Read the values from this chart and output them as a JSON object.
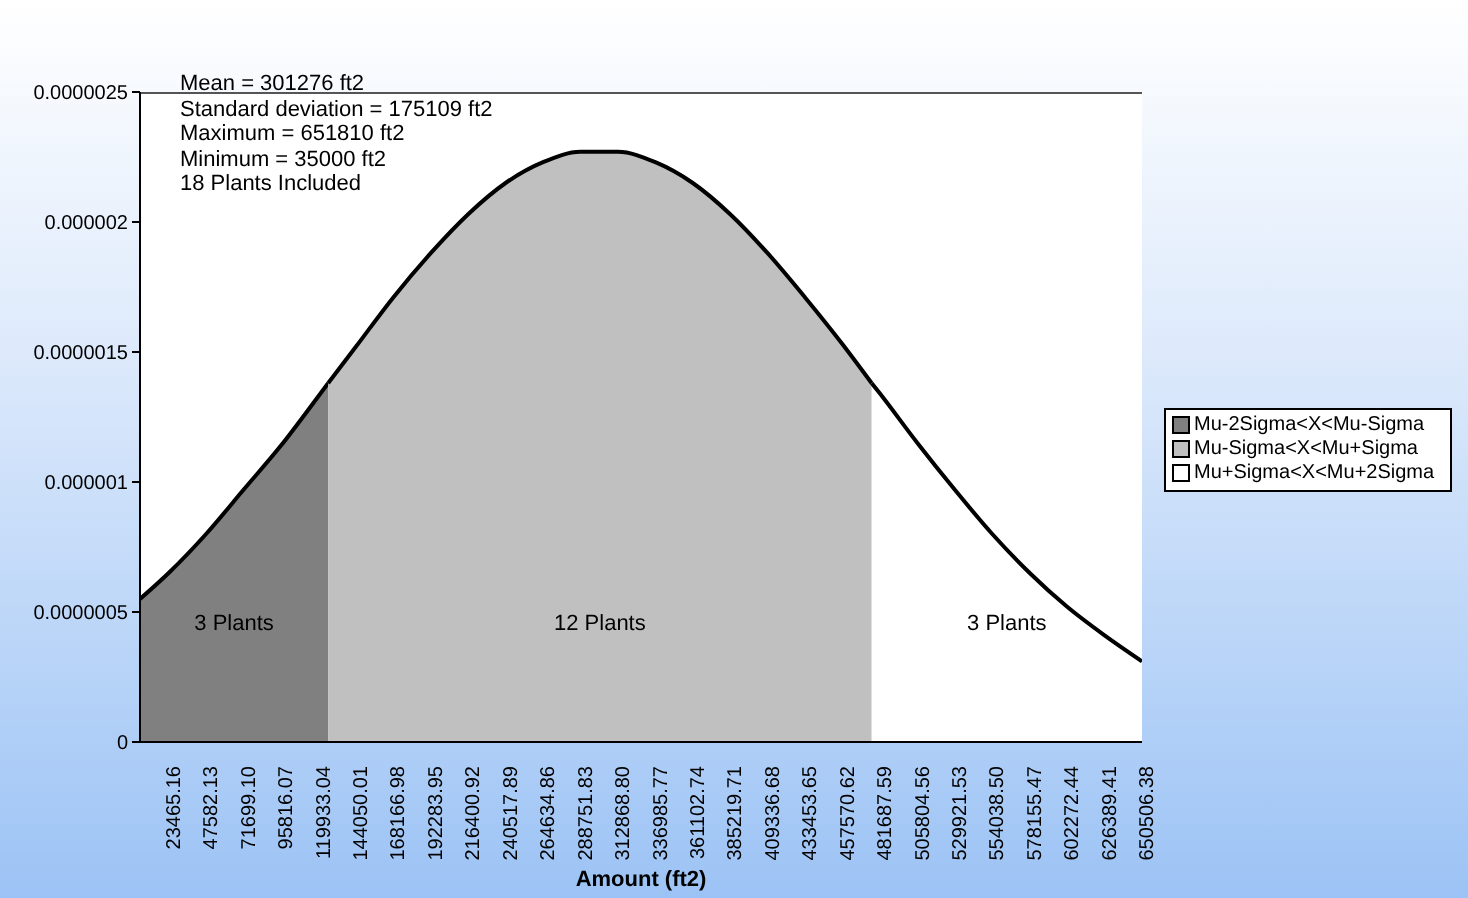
{
  "chart_data": {
    "type": "area",
    "xlabel": "Amount (ft2)",
    "annotations": [
      "Mean = 301276 ft2",
      "Standard deviation = 175109 ft2",
      "Maximum = 651810 ft2",
      "Minimum = 35000 ft2",
      "18 Plants Included",
      "3 Plants",
      "12 Plants",
      "3 Plants"
    ],
    "series": [
      {
        "name": "Mu-2Sigma<X<Mu-Sigma",
        "color": "#808080",
        "x": [
          5000,
          23465.16,
          47582.13,
          71699.1,
          95816.07,
          119933.04,
          126167
        ],
        "values": [
          5.5e-07,
          6.5e-07,
          8e-07,
          9.7e-07,
          1.14e-06,
          1.33e-06,
          1.38e-06
        ]
      },
      {
        "name": "Mu-Sigma<X<Mu+Sigma",
        "color": "#c0c0c0",
        "x": [
          126167,
          144050.01,
          168166.98,
          192283.95,
          216400.92,
          240517.89,
          264634.86,
          288751.83,
          312868.8,
          336985.77,
          361102.74,
          385219.71,
          409336.68,
          433453.65,
          457570.62,
          476385
        ],
        "values": [
          1.38e-06,
          1.52e-06,
          1.71e-06,
          1.88e-06,
          2.03e-06,
          2.15e-06,
          2.23e-06,
          2.27e-06,
          2.27e-06,
          2.23e-06,
          2.15e-06,
          2.03e-06,
          1.88e-06,
          1.71e-06,
          1.53e-06,
          1.38e-06
        ]
      },
      {
        "name": "Mu+Sigma<X<Mu+2Sigma",
        "color": "#ffffff",
        "x": [
          476385,
          481687.59,
          505804.56,
          529921.53,
          554038.5,
          578155.47,
          602272.44,
          626389.41,
          650506.38
        ],
        "values": [
          1.38e-06,
          1.34e-06,
          1.15e-06,
          9.7e-07,
          8e-07,
          6.5e-07,
          5.2e-07,
          4.1e-07,
          3.1e-07
        ]
      }
    ],
    "xlim": [
      5000,
      650506.38
    ],
    "xticks": [
      23465.16,
      47582.13,
      {
        "value": 71699.1,
        "label": "71699.10"
      },
      95816.07,
      119933.04,
      144050.01,
      168166.98,
      192283.95,
      216400.92,
      240517.89,
      264634.86,
      288751.83,
      {
        "value": 312868.8,
        "label": "312868.80"
      },
      336985.77,
      361102.74,
      385219.71,
      409336.68,
      433453.65,
      457570.62,
      481687.59,
      505804.56,
      529921.53,
      {
        "value": 554038.5,
        "label": "554038.50"
      },
      578155.47,
      602272.44,
      626389.41,
      650506.38
    ],
    "ylim": [
      0,
      2.5e-06
    ],
    "yticks": [
      0,
      {
        "value": 5e-07,
        "label": "0.0000005"
      },
      {
        "value": 1e-06,
        "label": "0.000001"
      },
      {
        "value": 1.5e-06,
        "label": "0.0000015"
      },
      {
        "value": 2e-06,
        "label": "0.000002"
      },
      {
        "value": 2.5e-06,
        "label": "0.0000025"
      }
    ],
    "grid": false,
    "legend": "right"
  }
}
